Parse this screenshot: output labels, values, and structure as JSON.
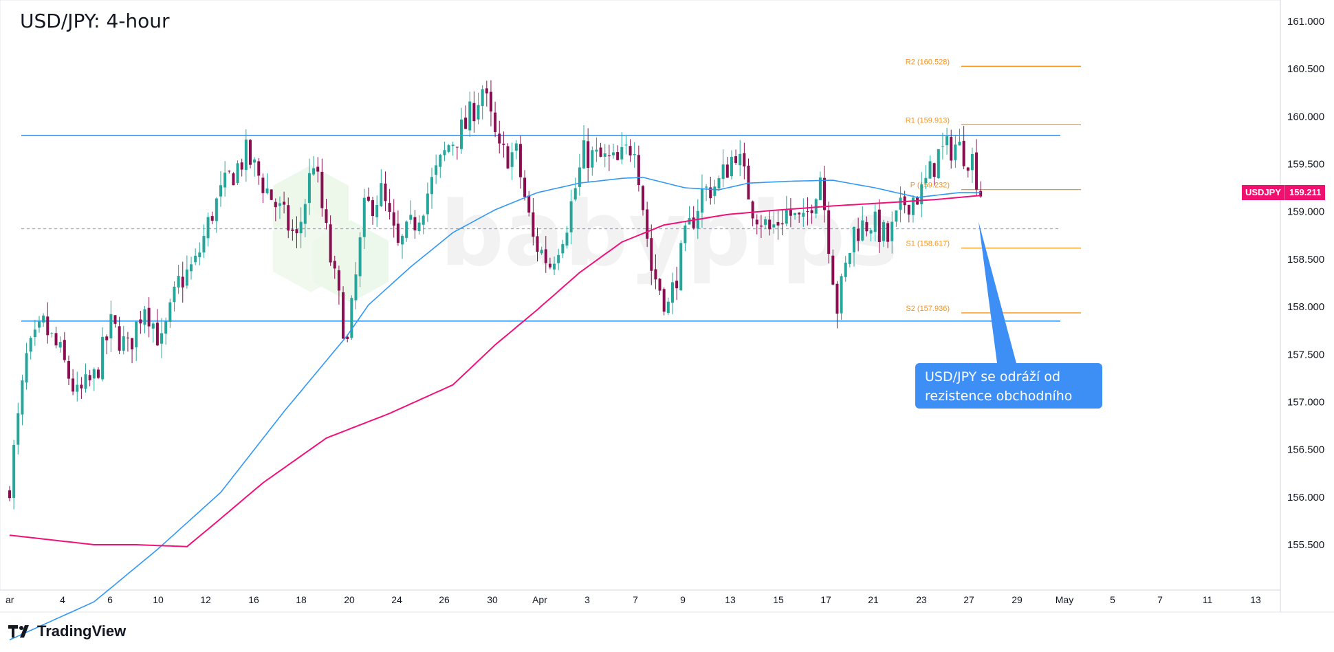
{
  "header": {
    "title": "USD/JPY: 4-hour"
  },
  "footer": {
    "brand": "TradingView"
  },
  "price_tag": {
    "symbol": "USDJPY",
    "value": "159.211"
  },
  "callout": {
    "line1": "USD/JPY se odráží od",
    "line2": "rezistence obchodního pásma"
  },
  "colors": {
    "bull": "#26a69a",
    "bear": "#880e4f",
    "ma_short": "#2f97f5",
    "ma_long": "#f0107a",
    "range": "#2f97f5",
    "pivot": "#f7931a",
    "callout": "#3d8ef5",
    "watermark": "#e8e8e8"
  },
  "chart_data": {
    "type": "candlestick",
    "title": "USD/JPY: 4-hour",
    "y_range": [
      155.05,
      161.2
    ],
    "y_ticks": [
      "161.000",
      "160.500",
      "160.000",
      "159.500",
      "159.000",
      "158.500",
      "158.000",
      "157.500",
      "157.000",
      "156.500",
      "156.000",
      "155.500"
    ],
    "x_ticks": [
      "ar",
      "4",
      "6",
      "10",
      "12",
      "16",
      "18",
      "20",
      "24",
      "26",
      "30",
      "Apr",
      "3",
      "7",
      "9",
      "13",
      "15",
      "17",
      "21",
      "23",
      "27",
      "29",
      "May",
      "5",
      "7",
      "11",
      "13"
    ],
    "range_lines": [
      159.8,
      157.85
    ],
    "dashed_line": 158.82,
    "pivot_levels": [
      {
        "label": "R2 (160.528)",
        "value": 160.528
      },
      {
        "label": "R1 (159.913)",
        "value": 159.913
      },
      {
        "label": "P (159.232)",
        "value": 159.232
      },
      {
        "label": "S1 (158.617)",
        "value": 158.617
      },
      {
        "label": "S2 (157.936)",
        "value": 157.936
      }
    ],
    "close_anchors": [
      [
        0,
        156.15
      ],
      [
        4,
        157.45
      ],
      [
        8,
        157.8
      ],
      [
        12,
        157.5
      ],
      [
        16,
        157.05
      ],
      [
        20,
        157.25
      ],
      [
        24,
        157.8
      ],
      [
        28,
        157.55
      ],
      [
        32,
        158.05
      ],
      [
        36,
        157.6
      ],
      [
        40,
        158.25
      ],
      [
        44,
        158.45
      ],
      [
        48,
        159.0
      ],
      [
        52,
        159.35
      ],
      [
        56,
        159.6
      ],
      [
        60,
        159.3
      ],
      [
        64,
        159.0
      ],
      [
        68,
        158.7
      ],
      [
        72,
        159.55
      ],
      [
        76,
        158.5
      ],
      [
        80,
        157.6
      ],
      [
        84,
        159.0
      ],
      [
        88,
        159.2
      ],
      [
        92,
        158.6
      ],
      [
        96,
        158.9
      ],
      [
        100,
        159.3
      ],
      [
        104,
        159.7
      ],
      [
        108,
        159.9
      ],
      [
        112,
        160.3
      ],
      [
        116,
        159.6
      ],
      [
        120,
        159.6
      ],
      [
        124,
        158.7
      ],
      [
        128,
        158.45
      ],
      [
        132,
        158.9
      ],
      [
        136,
        159.6
      ],
      [
        140,
        159.55
      ],
      [
        144,
        159.5
      ],
      [
        148,
        159.75
      ],
      [
        152,
        158.4
      ],
      [
        156,
        158.0
      ],
      [
        160,
        158.7
      ],
      [
        164,
        159.2
      ],
      [
        168,
        159.3
      ],
      [
        172,
        159.65
      ],
      [
        176,
        159.05
      ],
      [
        180,
        158.8
      ],
      [
        184,
        159.0
      ],
      [
        188,
        158.85
      ],
      [
        192,
        159.4
      ],
      [
        196,
        158.0
      ],
      [
        200,
        158.8
      ],
      [
        204,
        158.9
      ],
      [
        208,
        158.7
      ],
      [
        212,
        159.1
      ],
      [
        216,
        159.2
      ],
      [
        220,
        159.6
      ],
      [
        224,
        159.7
      ],
      [
        228,
        159.55
      ],
      [
        230,
        159.21
      ]
    ],
    "ma_short": [
      [
        0,
        154.5
      ],
      [
        20,
        154.9
      ],
      [
        35,
        155.45
      ],
      [
        50,
        156.05
      ],
      [
        65,
        156.9
      ],
      [
        80,
        157.7
      ],
      [
        85,
        158.02
      ],
      [
        95,
        158.42
      ],
      [
        105,
        158.78
      ],
      [
        115,
        159.02
      ],
      [
        125,
        159.2
      ],
      [
        135,
        159.3
      ],
      [
        145,
        159.35
      ],
      [
        150,
        159.36
      ],
      [
        160,
        159.25
      ],
      [
        168,
        159.23
      ],
      [
        175,
        159.3
      ],
      [
        185,
        159.32
      ],
      [
        195,
        159.33
      ],
      [
        205,
        159.25
      ],
      [
        215,
        159.15
      ],
      [
        225,
        159.2
      ],
      [
        230,
        159.2
      ]
    ],
    "ma_long": [
      [
        0,
        155.6
      ],
      [
        20,
        155.5
      ],
      [
        30,
        155.5
      ],
      [
        42,
        155.48
      ],
      [
        48,
        155.7
      ],
      [
        60,
        156.15
      ],
      [
        75,
        156.62
      ],
      [
        90,
        156.88
      ],
      [
        105,
        157.18
      ],
      [
        115,
        157.6
      ],
      [
        125,
        157.97
      ],
      [
        135,
        158.36
      ],
      [
        145,
        158.68
      ],
      [
        155,
        158.86
      ],
      [
        170,
        158.97
      ],
      [
        180,
        159.01
      ],
      [
        195,
        159.06
      ],
      [
        210,
        159.1
      ],
      [
        220,
        159.13
      ],
      [
        230,
        159.17
      ]
    ]
  }
}
